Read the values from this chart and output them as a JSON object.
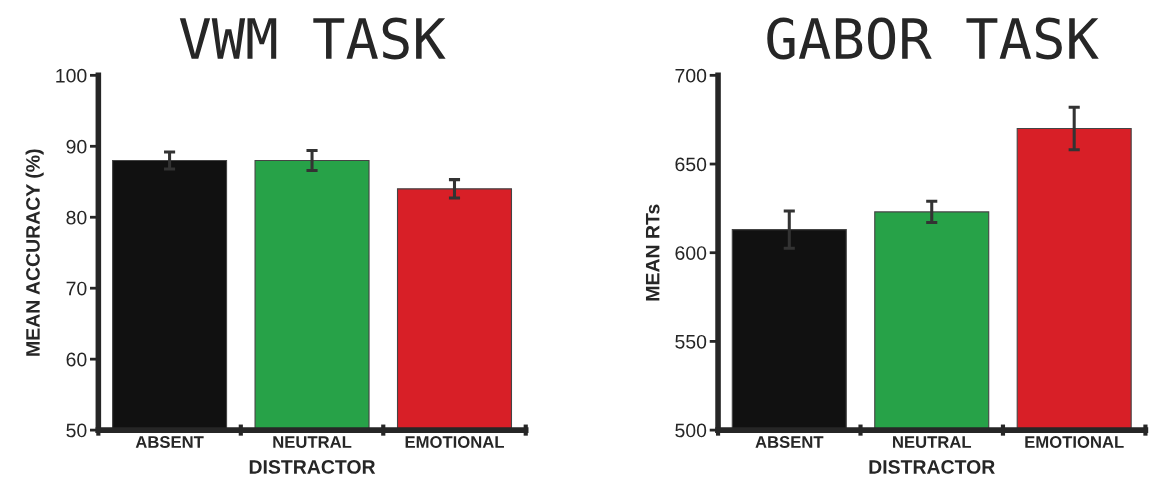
{
  "chart_data": [
    {
      "type": "bar",
      "title": "VWM TASK",
      "xlabel": "DISTRACTOR",
      "ylabel": "MEAN ACCURACY (%)",
      "categories": [
        "ABSENT",
        "NEUTRAL",
        "EMOTIONAL"
      ],
      "values": [
        88,
        88,
        84
      ],
      "colors": [
        "#111111",
        "#27a248",
        "#d81f27"
      ],
      "errors": [
        1.2,
        1.4,
        1.3
      ],
      "ylim": [
        50,
        100
      ],
      "yticks": [
        50,
        60,
        70,
        80,
        90,
        100
      ],
      "grid": false,
      "legend": false
    },
    {
      "type": "bar",
      "title": "GABOR TASK",
      "xlabel": "DISTRACTOR",
      "ylabel": "MEAN RTs",
      "categories": [
        "ABSENT",
        "NEUTRAL",
        "EMOTIONAL"
      ],
      "values": [
        613,
        623,
        670
      ],
      "colors": [
        "#111111",
        "#27a248",
        "#d81f27"
      ],
      "errors": [
        10.5,
        6,
        12
      ],
      "ylim": [
        500,
        700
      ],
      "yticks": [
        500,
        550,
        600,
        650,
        700
      ],
      "grid": false,
      "legend": false
    }
  ]
}
